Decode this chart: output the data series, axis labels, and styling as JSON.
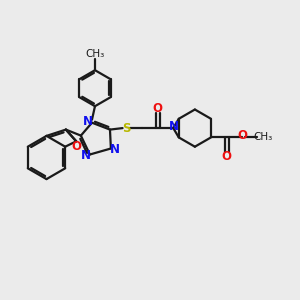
{
  "bg_color": "#ebebeb",
  "bond_color": "#1a1a1a",
  "n_color": "#1010ee",
  "o_color": "#ee1010",
  "s_color": "#b8b800",
  "lw": 1.6,
  "fs": 8.5,
  "fs_small": 7.5,
  "xlim": [
    0,
    10
  ],
  "ylim": [
    0,
    10
  ]
}
